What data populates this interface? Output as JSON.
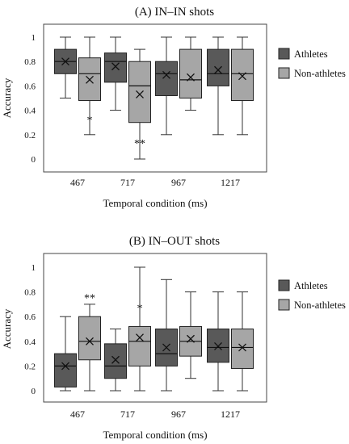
{
  "chart_data": [
    {
      "type": "box",
      "title": "(A) IN–IN shots",
      "xlabel": "Temporal condition (ms)",
      "ylabel": "Accuracy",
      "ylim": [
        0,
        1
      ],
      "yticks": [
        "0",
        "0.2",
        "0.4",
        "0.6",
        "0.8",
        "1"
      ],
      "categories": [
        "467",
        "717",
        "967",
        "1217"
      ],
      "legend_position": "right",
      "series": [
        {
          "name": "Athletes",
          "color": "#595959",
          "boxes": [
            {
              "min": 0.5,
              "q1": 0.7,
              "median": 0.8,
              "q3": 0.9,
              "max": 1.0,
              "mean": 0.8
            },
            {
              "min": 0.4,
              "q1": 0.63,
              "median": 0.8,
              "q3": 0.87,
              "max": 1.0,
              "mean": 0.76
            },
            {
              "min": 0.2,
              "q1": 0.52,
              "median": 0.7,
              "q3": 0.8,
              "max": 1.0,
              "mean": 0.69
            },
            {
              "min": 0.2,
              "q1": 0.6,
              "median": 0.7,
              "q3": 0.9,
              "max": 1.0,
              "mean": 0.73
            }
          ]
        },
        {
          "name": "Non-athletes",
          "color": "#a6a6a6",
          "boxes": [
            {
              "min": 0.2,
              "q1": 0.48,
              "median": 0.7,
              "q3": 0.83,
              "max": 1.0,
              "mean": 0.65
            },
            {
              "min": 0.0,
              "q1": 0.3,
              "median": 0.6,
              "q3": 0.8,
              "max": 0.9,
              "mean": 0.53
            },
            {
              "min": 0.4,
              "q1": 0.5,
              "median": 0.65,
              "q3": 0.9,
              "max": 1.0,
              "mean": 0.67
            },
            {
              "min": 0.2,
              "q1": 0.48,
              "median": 0.7,
              "q3": 0.9,
              "max": 1.0,
              "mean": 0.68
            }
          ]
        }
      ],
      "annotations": [
        {
          "text": "*",
          "category": "467",
          "y": 0.33
        },
        {
          "text": "**",
          "category": "717",
          "y": 0.14
        }
      ]
    },
    {
      "type": "box",
      "title": "(B) IN–OUT shots",
      "xlabel": "Temporal condition (ms)",
      "ylabel": "Accuracy",
      "ylim": [
        0,
        1
      ],
      "yticks": [
        "0",
        "0.2",
        "0.4",
        "0.6",
        "0.8",
        "1"
      ],
      "categories": [
        "467",
        "717",
        "967",
        "1217"
      ],
      "legend_position": "right",
      "series": [
        {
          "name": "Athletes",
          "color": "#595959",
          "boxes": [
            {
              "min": 0.0,
              "q1": 0.03,
              "median": 0.2,
              "q3": 0.3,
              "max": 0.6,
              "mean": 0.2
            },
            {
              "min": 0.0,
              "q1": 0.1,
              "median": 0.2,
              "q3": 0.38,
              "max": 0.5,
              "mean": 0.25
            },
            {
              "min": 0.0,
              "q1": 0.2,
              "median": 0.3,
              "q3": 0.5,
              "max": 0.9,
              "mean": 0.35
            },
            {
              "min": 0.0,
              "q1": 0.23,
              "median": 0.35,
              "q3": 0.5,
              "max": 0.8,
              "mean": 0.36
            }
          ]
        },
        {
          "name": "Non-athletes",
          "color": "#a6a6a6",
          "boxes": [
            {
              "min": 0.0,
              "q1": 0.25,
              "median": 0.4,
              "q3": 0.6,
              "max": 0.7,
              "mean": 0.4
            },
            {
              "min": 0.0,
              "q1": 0.2,
              "median": 0.4,
              "q3": 0.52,
              "max": 1.0,
              "mean": 0.43
            },
            {
              "min": 0.1,
              "q1": 0.28,
              "median": 0.4,
              "q3": 0.52,
              "max": 0.8,
              "mean": 0.42
            },
            {
              "min": 0.0,
              "q1": 0.18,
              "median": 0.35,
              "q3": 0.5,
              "max": 0.8,
              "mean": 0.35
            }
          ]
        }
      ],
      "annotations": [
        {
          "text": "**",
          "category": "467",
          "y": 0.76
        },
        {
          "text": "*",
          "category": "717",
          "y": 0.68
        }
      ]
    }
  ]
}
